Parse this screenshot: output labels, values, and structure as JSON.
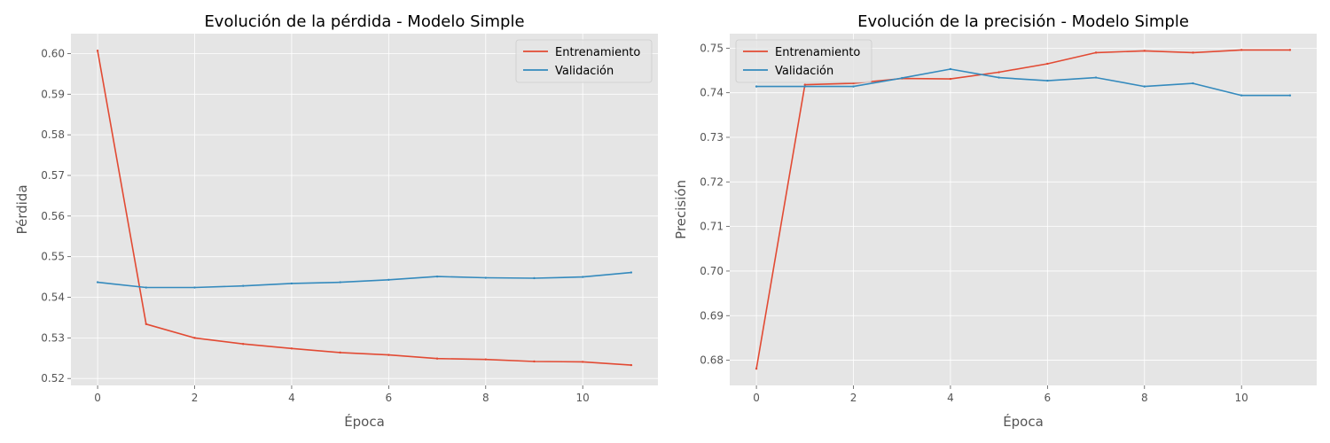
{
  "chart_data": [
    {
      "type": "line",
      "title": "Evolución de la pérdida - Modelo Simple",
      "xlabel": "Época",
      "ylabel": "Pérdida",
      "xlim": [
        -0.55,
        11.55
      ],
      "ylim": [
        0.5183,
        0.6049
      ],
      "xticks": [
        0,
        2,
        4,
        6,
        8,
        10
      ],
      "yticks": [
        0.52,
        0.53,
        0.54,
        0.55,
        0.56,
        0.57,
        0.58,
        0.59,
        0.6
      ],
      "ytick_labels": [
        "0.52",
        "0.53",
        "0.54",
        "0.55",
        "0.56",
        "0.57",
        "0.58",
        "0.59",
        "0.60"
      ],
      "grid": true,
      "legend": "top-right",
      "x": [
        0,
        1,
        2,
        3,
        4,
        5,
        6,
        7,
        8,
        9,
        10,
        11
      ],
      "series": [
        {
          "name": "Entrenamiento",
          "color": "#E24A33",
          "values": [
            0.6007,
            0.5334,
            0.53,
            0.5285,
            0.5274,
            0.5264,
            0.5258,
            0.5249,
            0.5247,
            0.5242,
            0.5241,
            0.5233
          ]
        },
        {
          "name": "Validación",
          "color": "#348ABD",
          "values": [
            0.5437,
            0.5424,
            0.5424,
            0.5428,
            0.5434,
            0.5437,
            0.5443,
            0.5451,
            0.5448,
            0.5447,
            0.545,
            0.5461
          ]
        }
      ]
    },
    {
      "type": "line",
      "title": "Evolución de la precisión - Modelo Simple",
      "xlabel": "Época",
      "ylabel": "Precisión",
      "xlim": [
        -0.55,
        11.55
      ],
      "ylim": [
        0.67435,
        0.75325
      ],
      "xticks": [
        0,
        2,
        4,
        6,
        8,
        10
      ],
      "yticks": [
        0.68,
        0.69,
        0.7,
        0.71,
        0.72,
        0.73,
        0.74,
        0.75
      ],
      "ytick_labels": [
        "0.68",
        "0.69",
        "0.70",
        "0.71",
        "0.72",
        "0.73",
        "0.74",
        "0.75"
      ],
      "grid": true,
      "legend": "top-left",
      "x": [
        0,
        1,
        2,
        3,
        4,
        5,
        6,
        7,
        8,
        9,
        10,
        11
      ],
      "series": [
        {
          "name": "Entrenamiento",
          "color": "#E24A33",
          "values": [
            0.6781,
            0.7418,
            0.7421,
            0.7432,
            0.7431,
            0.7446,
            0.7465,
            0.749,
            0.7494,
            0.749,
            0.7496,
            0.7496
          ]
        },
        {
          "name": "Validación",
          "color": "#348ABD",
          "values": [
            0.7414,
            0.7414,
            0.7414,
            0.7433,
            0.7453,
            0.7434,
            0.7427,
            0.7434,
            0.7414,
            0.7421,
            0.7394,
            0.7394
          ]
        }
      ]
    }
  ]
}
